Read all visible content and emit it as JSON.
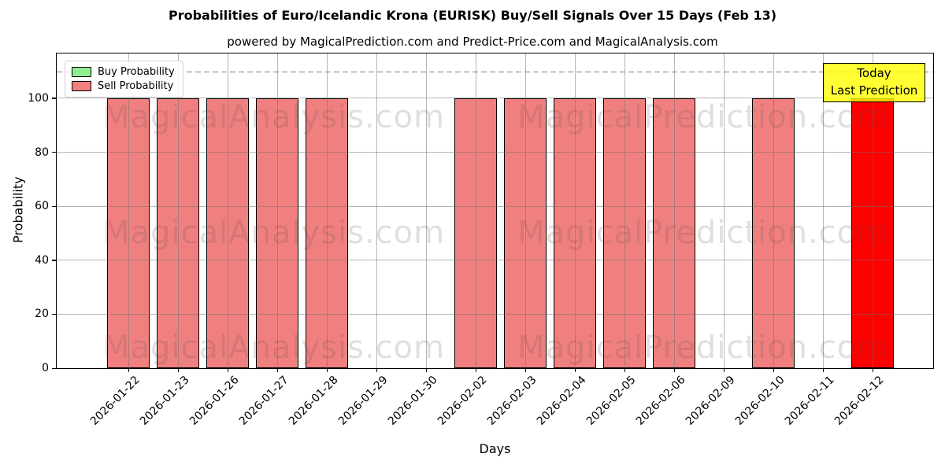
{
  "chart_data": {
    "type": "bar",
    "title": "Probabilities of Euro/Icelandic Krona (EURISK) Buy/Sell Signals Over 15 Days (Feb 13)",
    "subtitle": "powered by MagicalPrediction.com and Predict-Price.com and MagicalAnalysis.com",
    "xlabel": "Days",
    "ylabel": "Probability",
    "categories": [
      "2026-01-22",
      "2026-01-23",
      "2026-01-26",
      "2026-01-27",
      "2026-01-28",
      "2026-01-29",
      "2026-01-30",
      "2026-02-02",
      "2026-02-03",
      "2026-02-04",
      "2026-02-05",
      "2026-02-06",
      "2026-02-09",
      "2026-02-10",
      "2026-02-11",
      "2026-02-12"
    ],
    "series": [
      {
        "name": "Buy Probability",
        "color": "#90EE90",
        "values": [
          0,
          0,
          0,
          0,
          0,
          0,
          0,
          0,
          0,
          0,
          0,
          0,
          0,
          0,
          0,
          0
        ]
      },
      {
        "name": "Sell Probability",
        "color": "#F08080",
        "values": [
          100,
          100,
          100,
          100,
          100,
          0,
          0,
          100,
          100,
          100,
          100,
          100,
          0,
          100,
          0,
          100
        ]
      }
    ],
    "today_annotation": {
      "index": 15,
      "bar_color": "#FF0000",
      "box_color": "#FFFF00",
      "line1": "Today",
      "line2": "Last Prediction"
    },
    "yticks": [
      0,
      20,
      40,
      60,
      80,
      100
    ],
    "ylim": [
      0,
      116.6
    ],
    "dashed_line_y": 110,
    "grid": true,
    "legend_position": "upper-left",
    "watermarks": [
      "MagicalAnalysis.com",
      "MagicalPrediction.com"
    ]
  }
}
